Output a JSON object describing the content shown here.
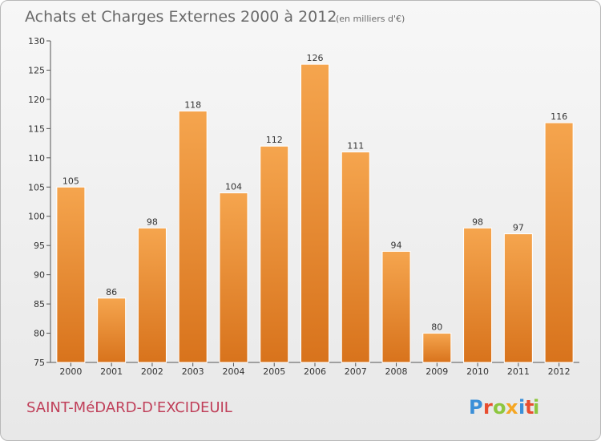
{
  "chart_data": {
    "type": "bar",
    "title": "Achats et Charges Externes 2000 à 2012",
    "subtitle": "(en milliers d'€)",
    "categories": [
      "2000",
      "2001",
      "2002",
      "2003",
      "2004",
      "2005",
      "2006",
      "2007",
      "2008",
      "2009",
      "2010",
      "2011",
      "2012"
    ],
    "values": [
      105,
      86,
      98,
      118,
      104,
      112,
      126,
      111,
      94,
      80,
      98,
      97,
      116
    ],
    "yticks": [
      75,
      80,
      85,
      90,
      95,
      100,
      105,
      110,
      115,
      120,
      125,
      130
    ],
    "ylim": [
      75,
      130
    ],
    "grid": false,
    "bar_color": "#f08a2c"
  },
  "commune_name": "SAINT-MéDARD-D'EXCIDEUIL",
  "logo": {
    "text": "Proxiti",
    "colors": [
      "#3b8fd8",
      "#e84d2f",
      "#8dc63f",
      "#f5a623"
    ]
  }
}
